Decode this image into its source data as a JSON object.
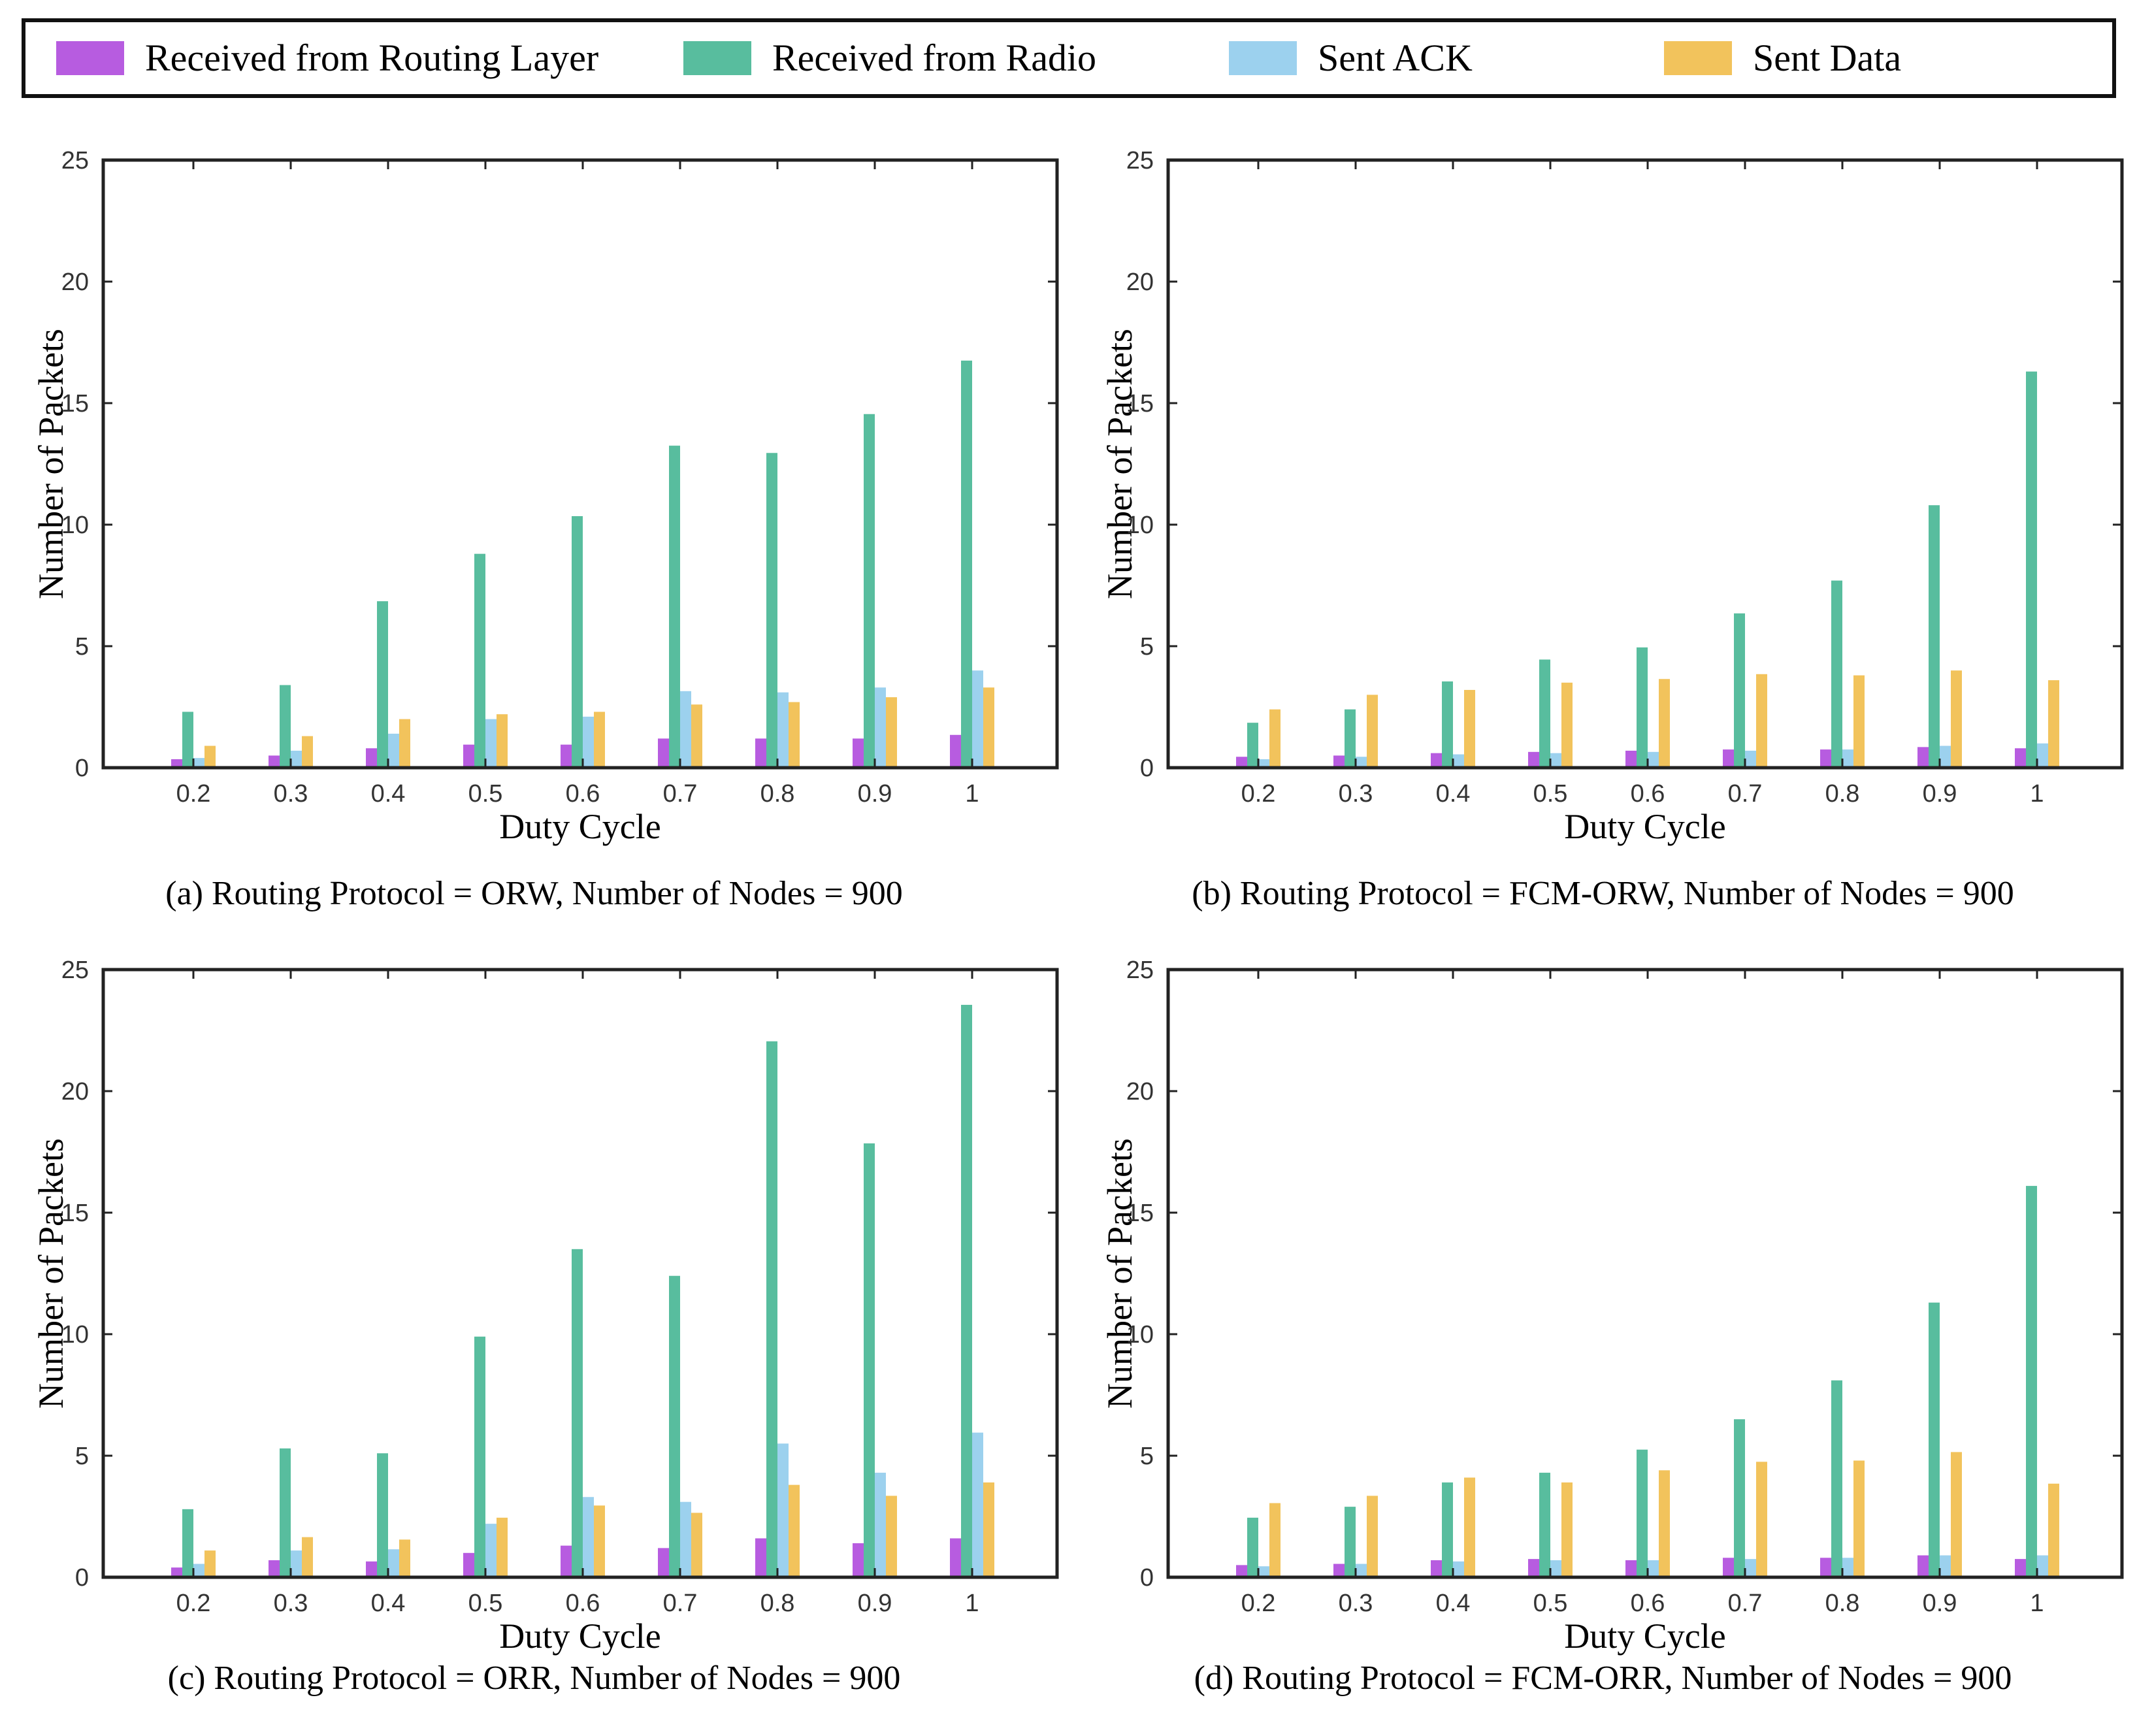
{
  "legend": {
    "items": [
      {
        "label": "Received from Routing Layer",
        "color": "#b75ce0"
      },
      {
        "label": "Received from Radio",
        "color": "#58bd9e"
      },
      {
        "label": "Sent ACK",
        "color": "#9cd1ee"
      },
      {
        "label": "Sent Data",
        "color": "#f2c35c"
      }
    ]
  },
  "chart_data": [
    {
      "type": "bar",
      "caption": "(a) Routing Protocol = ORW, Number of Nodes = 900",
      "xlabel": "Duty Cycle",
      "ylabel": "Number of Packets",
      "ylim": [
        0,
        25
      ],
      "yticks": [
        0,
        5,
        10,
        15,
        20,
        25
      ],
      "categories": [
        "0.2",
        "0.3",
        "0.4",
        "0.5",
        "0.6",
        "0.7",
        "0.8",
        "0.9",
        "1"
      ],
      "series": [
        {
          "name": "Received from Routing Layer",
          "color": "#b75ce0",
          "values": [
            0.35,
            0.5,
            0.8,
            0.95,
            0.95,
            1.2,
            1.2,
            1.2,
            1.35
          ]
        },
        {
          "name": "Received from Radio",
          "color": "#58bd9e",
          "values": [
            2.3,
            3.4,
            6.85,
            8.8,
            10.35,
            13.25,
            12.95,
            14.55,
            16.75
          ]
        },
        {
          "name": "Sent ACK",
          "color": "#9cd1ee",
          "values": [
            0.4,
            0.7,
            1.4,
            2.0,
            2.1,
            3.15,
            3.1,
            3.3,
            4.0
          ]
        },
        {
          "name": "Sent Data",
          "color": "#f2c35c",
          "values": [
            0.9,
            1.3,
            2.0,
            2.2,
            2.3,
            2.6,
            2.7,
            2.9,
            3.3
          ]
        }
      ]
    },
    {
      "type": "bar",
      "caption": "(b) Routing Protocol = FCM-ORW, Number of Nodes = 900",
      "xlabel": "Duty Cycle",
      "ylabel": "Number of Packets",
      "ylim": [
        0,
        25
      ],
      "yticks": [
        0,
        5,
        10,
        15,
        20,
        25
      ],
      "categories": [
        "0.2",
        "0.3",
        "0.4",
        "0.5",
        "0.6",
        "0.7",
        "0.8",
        "0.9",
        "1"
      ],
      "series": [
        {
          "name": "Received from Routing Layer",
          "color": "#b75ce0",
          "values": [
            0.45,
            0.5,
            0.6,
            0.65,
            0.7,
            0.75,
            0.75,
            0.85,
            0.8
          ]
        },
        {
          "name": "Received from Radio",
          "color": "#58bd9e",
          "values": [
            1.85,
            2.4,
            3.55,
            4.45,
            4.95,
            6.35,
            7.7,
            10.8,
            16.3
          ]
        },
        {
          "name": "Sent ACK",
          "color": "#9cd1ee",
          "values": [
            0.35,
            0.45,
            0.55,
            0.6,
            0.65,
            0.7,
            0.75,
            0.9,
            1.0
          ]
        },
        {
          "name": "Sent Data",
          "color": "#f2c35c",
          "values": [
            2.4,
            3.0,
            3.2,
            3.5,
            3.65,
            3.85,
            3.8,
            4.0,
            3.6
          ]
        }
      ]
    },
    {
      "type": "bar",
      "caption": "(c) Routing Protocol = ORR, Number of Nodes = 900",
      "xlabel": "Duty Cycle",
      "ylabel": "Number of Packets",
      "ylim": [
        0,
        25
      ],
      "yticks": [
        0,
        5,
        10,
        15,
        20,
        25
      ],
      "categories": [
        "0.2",
        "0.3",
        "0.4",
        "0.5",
        "0.6",
        "0.7",
        "0.8",
        "0.9",
        "1"
      ],
      "series": [
        {
          "name": "Received from Routing Layer",
          "color": "#b75ce0",
          "values": [
            0.4,
            0.7,
            0.65,
            1.0,
            1.3,
            1.2,
            1.6,
            1.4,
            1.6
          ]
        },
        {
          "name": "Received from Radio",
          "color": "#58bd9e",
          "values": [
            2.8,
            5.3,
            5.1,
            9.9,
            13.5,
            12.4,
            22.05,
            17.85,
            23.55
          ]
        },
        {
          "name": "Sent ACK",
          "color": "#9cd1ee",
          "values": [
            0.55,
            1.1,
            1.15,
            2.2,
            3.3,
            3.1,
            5.5,
            4.3,
            5.95
          ]
        },
        {
          "name": "Sent Data",
          "color": "#f2c35c",
          "values": [
            1.1,
            1.65,
            1.55,
            2.45,
            2.95,
            2.65,
            3.8,
            3.35,
            3.9
          ]
        }
      ]
    },
    {
      "type": "bar",
      "caption": "(d) Routing Protocol = FCM-ORR, Number of Nodes = 900",
      "xlabel": "Duty Cycle",
      "ylabel": "Number of Packets",
      "ylim": [
        0,
        25
      ],
      "yticks": [
        0,
        5,
        10,
        15,
        20,
        25
      ],
      "categories": [
        "0.2",
        "0.3",
        "0.4",
        "0.5",
        "0.6",
        "0.7",
        "0.8",
        "0.9",
        "1"
      ],
      "series": [
        {
          "name": "Received from Routing Layer",
          "color": "#b75ce0",
          "values": [
            0.5,
            0.55,
            0.7,
            0.75,
            0.7,
            0.8,
            0.8,
            0.9,
            0.75
          ]
        },
        {
          "name": "Received from Radio",
          "color": "#58bd9e",
          "values": [
            2.45,
            2.9,
            3.9,
            4.3,
            5.25,
            6.5,
            8.1,
            11.3,
            16.1
          ]
        },
        {
          "name": "Sent ACK",
          "color": "#9cd1ee",
          "values": [
            0.45,
            0.55,
            0.65,
            0.7,
            0.7,
            0.75,
            0.8,
            0.9,
            0.9
          ]
        },
        {
          "name": "Sent Data",
          "color": "#f2c35c",
          "values": [
            3.05,
            3.35,
            4.1,
            3.9,
            4.4,
            4.75,
            4.8,
            5.15,
            3.85
          ]
        }
      ]
    }
  ]
}
